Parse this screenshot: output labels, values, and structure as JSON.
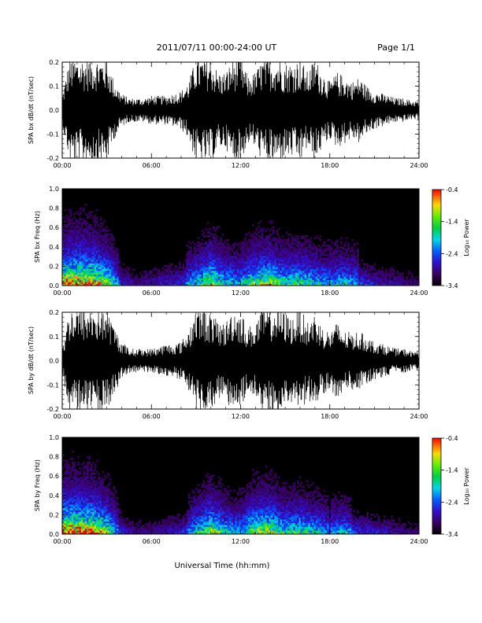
{
  "header": {
    "title": "2011/07/11   00:00-24:00 UT",
    "page": "Page 1/1"
  },
  "xlabel": "Universal Time (hh:mm)",
  "colorbar": {
    "label": "Log₁₀ Power",
    "ticks": [
      "-0.4",
      "-1.4",
      "-2.4",
      "-3.4"
    ],
    "range": [
      -3.4,
      -0.4
    ]
  },
  "colors": {
    "background": "#000000",
    "trace": "#000000"
  },
  "chart_data": [
    {
      "type": "line",
      "name": "bx-waveform",
      "ylabel": "SPA bx dB/dt (nT/sec)",
      "xlim": [
        0,
        24
      ],
      "ylim": [
        -0.2,
        0.2
      ],
      "x_ticks": [
        "00:00",
        "06:00",
        "12:00",
        "18:00",
        "24:00"
      ],
      "y_ticks": [
        "-0.2",
        "-0.1",
        "0.0",
        "0.1",
        "0.2"
      ],
      "envelope_hours": [
        0,
        0.5,
        1,
        1.5,
        2,
        2.5,
        3,
        3.5,
        4,
        4.5,
        5,
        5.5,
        6,
        6.5,
        7,
        7.5,
        8,
        8.5,
        9,
        9.5,
        10,
        10.5,
        11,
        11.5,
        12,
        12.5,
        13,
        13.5,
        14,
        14.5,
        15,
        15.5,
        16,
        16.5,
        17,
        17.5,
        18,
        18.5,
        19,
        19.5,
        20,
        20.5,
        21,
        21.5,
        22,
        22.5,
        23,
        23.5,
        24
      ],
      "envelope_amplitude": [
        0.06,
        0.22,
        0.22,
        0.22,
        0.22,
        0.22,
        0.22,
        0.12,
        0.07,
        0.05,
        0.05,
        0.05,
        0.06,
        0.06,
        0.06,
        0.07,
        0.08,
        0.12,
        0.22,
        0.22,
        0.22,
        0.16,
        0.16,
        0.22,
        0.22,
        0.14,
        0.16,
        0.22,
        0.22,
        0.22,
        0.2,
        0.2,
        0.22,
        0.16,
        0.22,
        0.16,
        0.12,
        0.16,
        0.14,
        0.12,
        0.14,
        0.1,
        0.08,
        0.07,
        0.06,
        0.05,
        0.05,
        0.04,
        0.04
      ]
    },
    {
      "type": "heatmap",
      "name": "bx-spectrogram",
      "ylabel": "SPA bx Freq (Hz)",
      "xlim": [
        0,
        24
      ],
      "ylim": [
        0,
        1
      ],
      "x_ticks": [
        "00:00",
        "06:00",
        "12:00",
        "18:00",
        "24:00"
      ],
      "y_ticks": [
        "0.0",
        "0.2",
        "0.4",
        "0.6",
        "0.8",
        "1.0"
      ],
      "activity_hours": [
        0,
        1,
        2,
        3,
        4,
        5,
        6,
        7,
        8,
        9,
        10,
        11,
        12,
        13,
        14,
        15,
        16,
        17,
        18,
        19,
        20,
        21,
        22,
        23,
        24
      ],
      "activity_level": [
        0.9,
        1.0,
        0.95,
        0.7,
        0.3,
        0.2,
        0.25,
        0.3,
        0.35,
        0.5,
        0.75,
        0.5,
        0.45,
        0.7,
        0.75,
        0.55,
        0.6,
        0.5,
        0.45,
        0.5,
        0.4,
        0.3,
        0.25,
        0.2,
        0.15
      ]
    },
    {
      "type": "line",
      "name": "by-waveform",
      "ylabel": "SPA by dB/dt (nT/sec)",
      "xlim": [
        0,
        24
      ],
      "ylim": [
        -0.2,
        0.2
      ],
      "x_ticks": [
        "00:00",
        "06:00",
        "12:00",
        "18:00",
        "24:00"
      ],
      "y_ticks": [
        "-0.2",
        "-0.1",
        "0.0",
        "0.1",
        "0.2"
      ],
      "envelope_hours": [
        0,
        0.5,
        1,
        1.5,
        2,
        2.5,
        3,
        3.5,
        4,
        4.5,
        5,
        5.5,
        6,
        6.5,
        7,
        7.5,
        8,
        8.5,
        9,
        9.5,
        10,
        10.5,
        11,
        11.5,
        12,
        12.5,
        13,
        13.5,
        14,
        14.5,
        15,
        15.5,
        16,
        16.5,
        17,
        17.5,
        18,
        18.5,
        19,
        19.5,
        20,
        20.5,
        21,
        21.5,
        22,
        22.5,
        23,
        23.5,
        24
      ],
      "envelope_amplitude": [
        0.05,
        0.22,
        0.22,
        0.22,
        0.22,
        0.22,
        0.22,
        0.14,
        0.08,
        0.05,
        0.05,
        0.05,
        0.05,
        0.06,
        0.07,
        0.07,
        0.08,
        0.13,
        0.22,
        0.22,
        0.2,
        0.16,
        0.16,
        0.22,
        0.2,
        0.14,
        0.16,
        0.22,
        0.22,
        0.22,
        0.2,
        0.18,
        0.22,
        0.16,
        0.2,
        0.14,
        0.12,
        0.16,
        0.12,
        0.12,
        0.12,
        0.1,
        0.08,
        0.07,
        0.06,
        0.05,
        0.05,
        0.04,
        0.04
      ]
    },
    {
      "type": "heatmap",
      "name": "by-spectrogram",
      "ylabel": "SPA by Freq (Hz)",
      "xlim": [
        0,
        24
      ],
      "ylim": [
        0,
        1
      ],
      "x_ticks": [
        "00:00",
        "06:00",
        "12:00",
        "18:00",
        "24:00"
      ],
      "y_ticks": [
        "0.0",
        "0.2",
        "0.4",
        "0.6",
        "0.8",
        "1.0"
      ],
      "activity_hours": [
        0,
        1,
        2,
        3,
        4,
        5,
        6,
        7,
        8,
        9,
        10,
        11,
        12,
        13,
        14,
        15,
        16,
        17,
        18,
        19,
        20,
        21,
        22,
        23,
        24
      ],
      "activity_level": [
        1.0,
        1.0,
        0.95,
        0.7,
        0.3,
        0.2,
        0.2,
        0.25,
        0.3,
        0.5,
        0.75,
        0.5,
        0.45,
        0.75,
        0.75,
        0.55,
        0.6,
        0.5,
        0.4,
        0.45,
        0.35,
        0.3,
        0.25,
        0.2,
        0.15
      ]
    }
  ]
}
